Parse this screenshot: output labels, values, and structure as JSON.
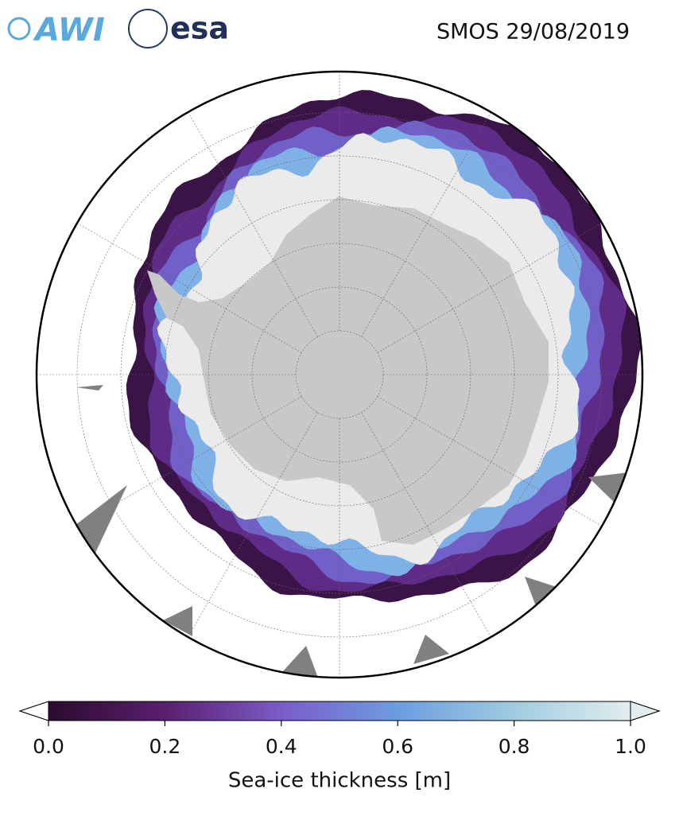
{
  "header": {
    "logos": [
      "AWI",
      "esa"
    ],
    "title": "SMOS 29/08/2019"
  },
  "colorbar": {
    "label": "Sea-ice thickness [m]",
    "range": [
      0,
      1
    ],
    "ticks": [
      {
        "value": 0,
        "label": "0.0"
      },
      {
        "value": 0.2,
        "label": "0.2"
      },
      {
        "value": 0.4,
        "label": "0.4"
      },
      {
        "value": 0.6,
        "label": "0.6"
      },
      {
        "value": 0.8,
        "label": "0.8"
      },
      {
        "value": 1,
        "label": "1.0"
      }
    ],
    "colors": [
      "#2a0c2e",
      "#5a1f6e",
      "#7a5cc8",
      "#6c9de0",
      "#9fcbe0",
      "#e2eeee"
    ]
  }
}
